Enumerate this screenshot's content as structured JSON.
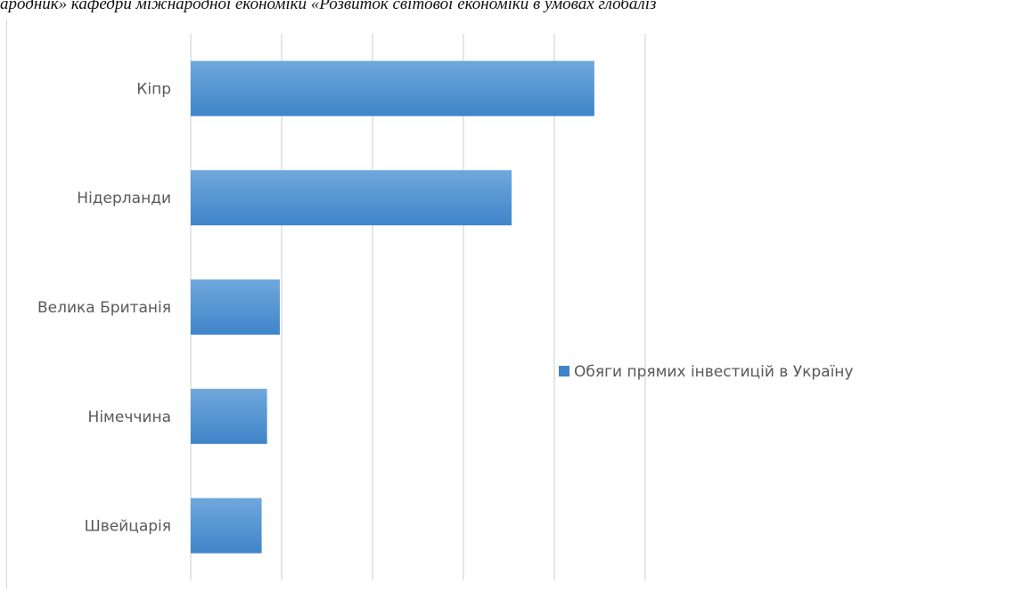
{
  "header": {
    "text": "ародник» кафедри міжнародної економіки «Розвиток світової економіки в умовах глобаліз"
  },
  "chart_data": {
    "type": "bar",
    "orientation": "horizontal",
    "categories": [
      "Кіпр",
      "Нідерланди",
      "Велика Британія",
      "Німеччина",
      "Швейцарія"
    ],
    "series": [
      {
        "name": "Обяги прямих інвестицій в Україну",
        "values": [
          4.44,
          3.53,
          0.98,
          0.84,
          0.78
        ]
      }
    ],
    "xlim": [
      0,
      5
    ],
    "tick_count": 5,
    "grid": true,
    "legend_position": "right",
    "colors": {
      "bar_top": "#6fa8dc",
      "bar_bottom": "#3f85c9",
      "gridline": "#d9d9d9"
    }
  }
}
